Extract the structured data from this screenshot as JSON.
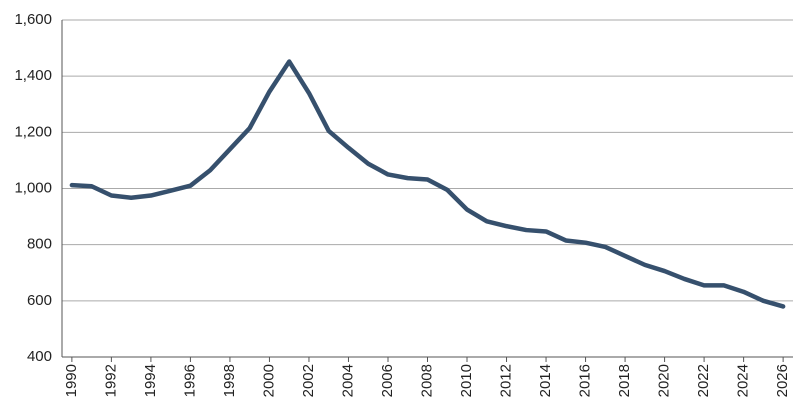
{
  "chart_data": {
    "type": "line",
    "x": [
      1990,
      1991,
      1992,
      1993,
      1994,
      1995,
      1996,
      1997,
      1998,
      1999,
      2000,
      2001,
      2002,
      2003,
      2004,
      2005,
      2006,
      2007,
      2008,
      2009,
      2010,
      2011,
      2012,
      2013,
      2014,
      2015,
      2016,
      2017,
      2018,
      2019,
      2020,
      2021,
      2022,
      2023,
      2024,
      2025,
      2026
    ],
    "values": [
      1012,
      1008,
      975,
      967,
      975,
      992,
      1010,
      1065,
      1140,
      1215,
      1345,
      1452,
      1340,
      1205,
      1145,
      1088,
      1050,
      1037,
      1032,
      995,
      925,
      883,
      866,
      852,
      847,
      815,
      807,
      792,
      760,
      728,
      706,
      678,
      655,
      655,
      632,
      600,
      580
    ],
    "color": "#36506d",
    "xlim": [
      1989.5,
      2026.5
    ],
    "xticks": [
      1990,
      1992,
      1994,
      1996,
      1998,
      2000,
      2002,
      2004,
      2006,
      2008,
      2010,
      2012,
      2014,
      2016,
      2018,
      2020,
      2022,
      2024,
      2026
    ],
    "ylim": [
      400,
      1600
    ],
    "yticks": [
      {
        "value": 400,
        "label": "400"
      },
      {
        "value": 600,
        "label": "600"
      },
      {
        "value": 800,
        "label": "800"
      },
      {
        "value": 1000,
        "label": "1,000"
      },
      {
        "value": 1200,
        "label": "1,200"
      },
      {
        "value": 1400,
        "label": "1,400"
      },
      {
        "value": 1600,
        "label": "1,600"
      }
    ],
    "grid": true
  }
}
